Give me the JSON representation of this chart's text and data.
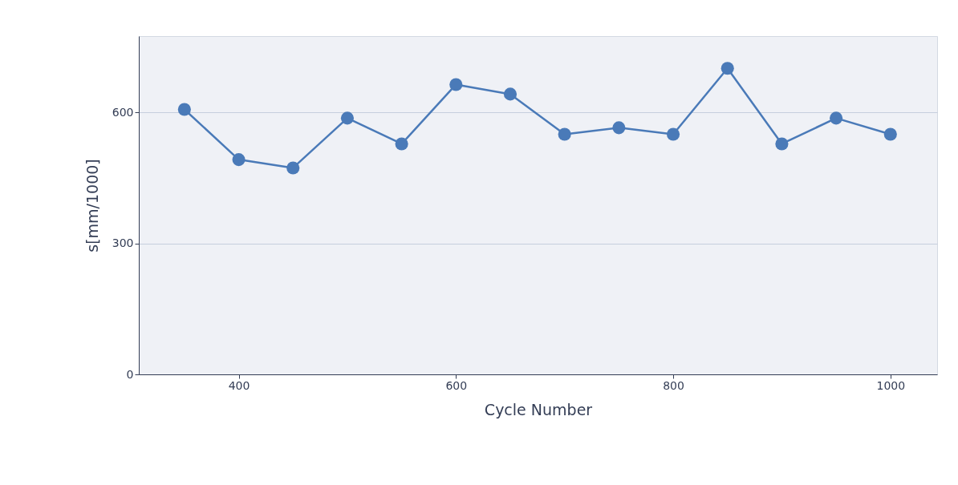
{
  "chart_data": {
    "type": "line",
    "xlabel": "Cycle Number",
    "ylabel": "s[mm/1000]",
    "x": [
      350,
      400,
      450,
      500,
      550,
      600,
      650,
      700,
      750,
      800,
      850,
      900,
      950,
      1000
    ],
    "series": [
      {
        "color": "#4a7ab8",
        "values": [
          607,
          492,
          473,
          587,
          528,
          664,
          642,
          550,
          565,
          550,
          701,
          528,
          587,
          550
        ]
      }
    ],
    "xlim": [
      308,
      1043
    ],
    "ylim": [
      0,
      775
    ],
    "xticks": [
      400,
      600,
      800,
      1000
    ],
    "yticks": [
      0,
      300,
      600
    ],
    "grid": "y",
    "marker": "circle",
    "line_style": "solid",
    "legend": false
  }
}
